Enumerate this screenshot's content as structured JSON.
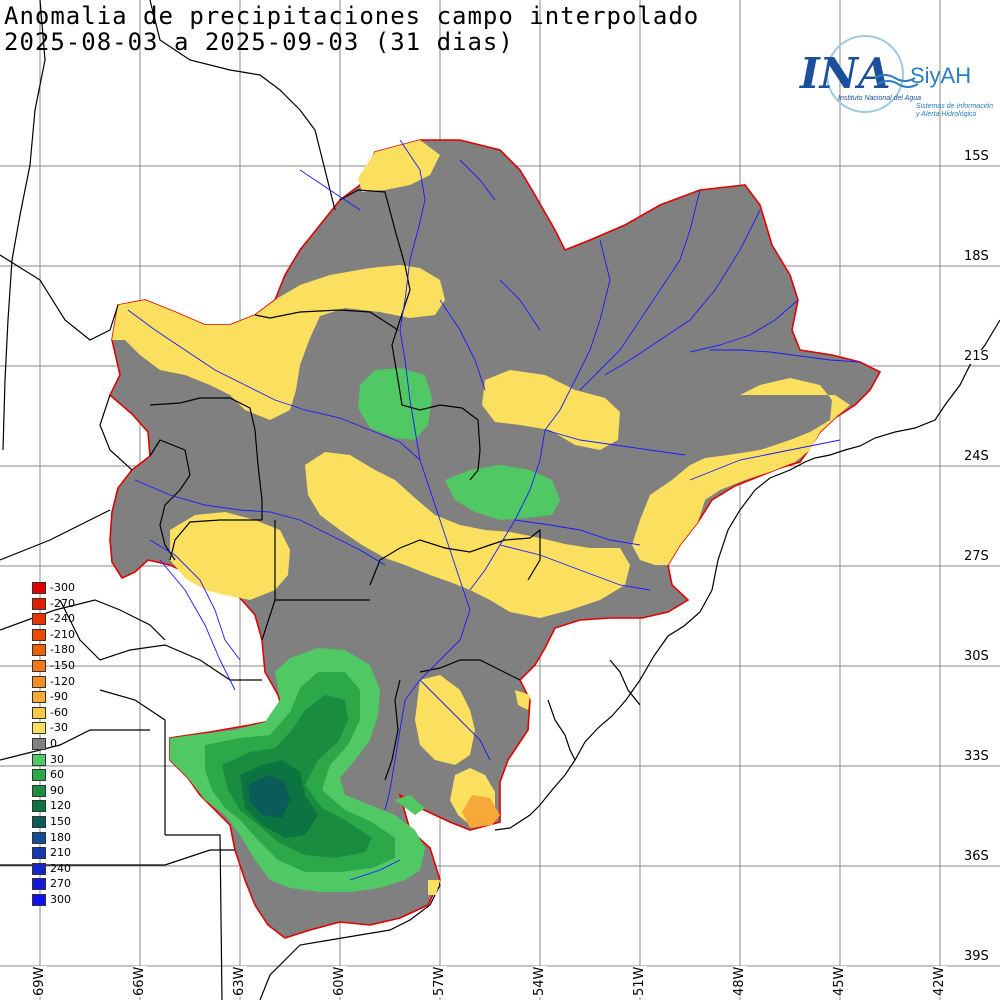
{
  "title": {
    "line1": "Anomalia de precipitaciones campo interpolado",
    "line2": "2025-08-03 a 2025-09-03 (31 dias)"
  },
  "logo": {
    "main_text": "INA",
    "brand_text": "SiyAH",
    "subtitle1": "Instituto Nacional del Agua",
    "subtitle2": "Sistemas de Información",
    "subtitle3": "y Alerta Hidrológico",
    "color": "#1a4f9c"
  },
  "lat_labels": [
    "15S",
    "18S",
    "21S",
    "24S",
    "27S",
    "30S",
    "33S",
    "36S",
    "39S"
  ],
  "lon_labels": [
    "69W",
    "66W",
    "63W",
    "60W",
    "57W",
    "54W",
    "51W",
    "48W",
    "45W",
    "42W"
  ],
  "legend": [
    {
      "label": "-300",
      "color": "#e00000"
    },
    {
      "label": "-270",
      "color": "#e41c00"
    },
    {
      "label": "-240",
      "color": "#e83400"
    },
    {
      "label": "-210",
      "color": "#ec4a00"
    },
    {
      "label": "-180",
      "color": "#f06000"
    },
    {
      "label": "-150",
      "color": "#f27818"
    },
    {
      "label": "-120",
      "color": "#f48c28"
    },
    {
      "label": "-90",
      "color": "#f6a838"
    },
    {
      "label": "-60",
      "color": "#f8c848"
    },
    {
      "label": "-30",
      "color": "#fbe060"
    },
    {
      "label": "0",
      "color": "#808080"
    },
    {
      "label": "30",
      "color": "#50c864"
    },
    {
      "label": "60",
      "color": "#2ca848"
    },
    {
      "label": "90",
      "color": "#1a8c40"
    },
    {
      "label": "120",
      "color": "#0c7440"
    },
    {
      "label": "150",
      "color": "#0a5c58"
    },
    {
      "label": "180",
      "color": "#144c98"
    },
    {
      "label": "210",
      "color": "#1438b0"
    },
    {
      "label": "240",
      "color": "#1428c8"
    },
    {
      "label": "270",
      "color": "#1418dc"
    },
    {
      "label": "300",
      "color": "#1010f0"
    }
  ],
  "colors": {
    "gray": "#808080",
    "yellow": "#fbe060",
    "green_light": "#50c864",
    "green_mid": "#2ca848",
    "green_dark": "#1a8c40",
    "teal": "#0a5c58",
    "orange": "#f6a838",
    "basin_outline": "#e00000",
    "rivers": "#1a1aff",
    "borders": "#000000"
  }
}
